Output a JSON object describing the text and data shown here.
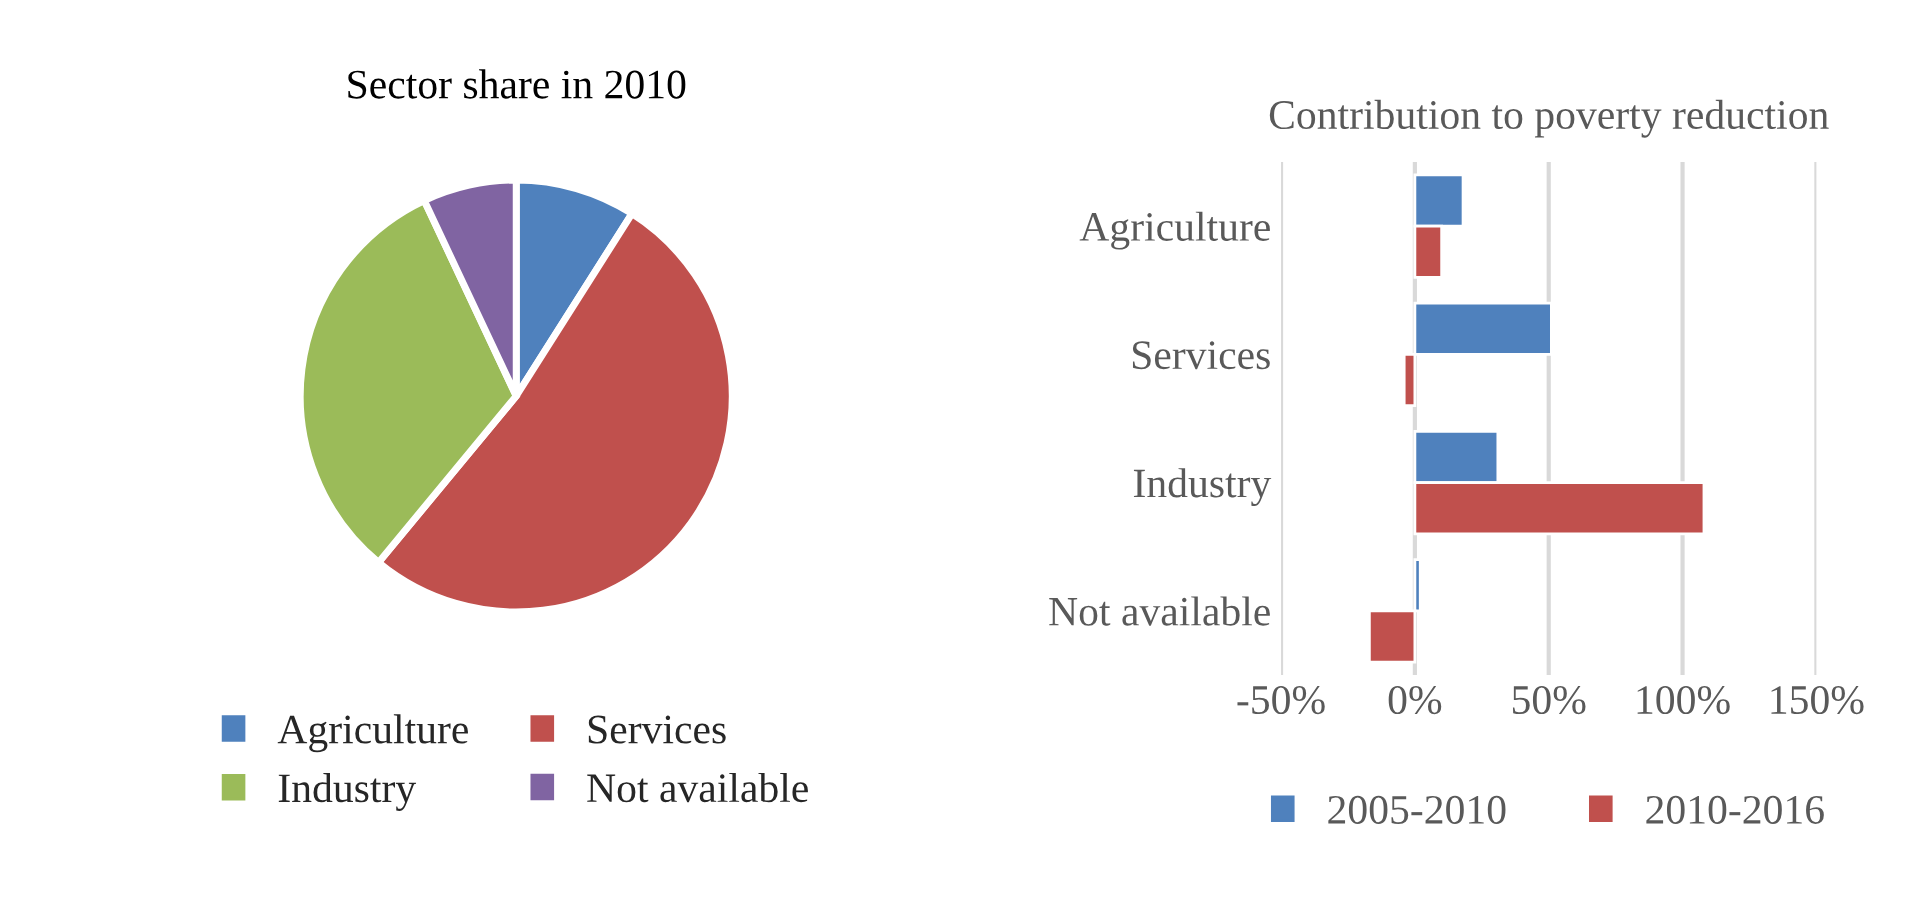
{
  "chart_data": [
    {
      "type": "pie",
      "title": "Sector share in 2010",
      "categories": [
        "Agriculture",
        "Services",
        "Industry",
        "Not available"
      ],
      "values": [
        9,
        52,
        32,
        7
      ],
      "colors": [
        "#4f81bd",
        "#c0504d",
        "#9bbb59",
        "#8064a2"
      ],
      "legend": "bottom"
    },
    {
      "type": "bar",
      "title": "Contribution to poverty reduction",
      "orientation": "horizontal",
      "categories": [
        "Agriculture",
        "Services",
        "Industry",
        "Not available"
      ],
      "series": [
        {
          "name": "2005-2010",
          "color": "#4f81bd",
          "values": [
            18,
            51,
            31,
            2
          ]
        },
        {
          "name": "2010-2016",
          "color": "#c0504d",
          "values": [
            10,
            -4,
            108,
            -17
          ]
        }
      ],
      "xlim": [
        -50,
        150
      ],
      "xticks": [
        {
          "value": -50,
          "label": "-50%"
        },
        {
          "value": 0,
          "label": "0%"
        },
        {
          "value": 50,
          "label": "50%"
        },
        {
          "value": 100,
          "label": "100%"
        },
        {
          "value": 150,
          "label": "150%"
        }
      ],
      "grid": "x",
      "legend": "bottom"
    }
  ]
}
